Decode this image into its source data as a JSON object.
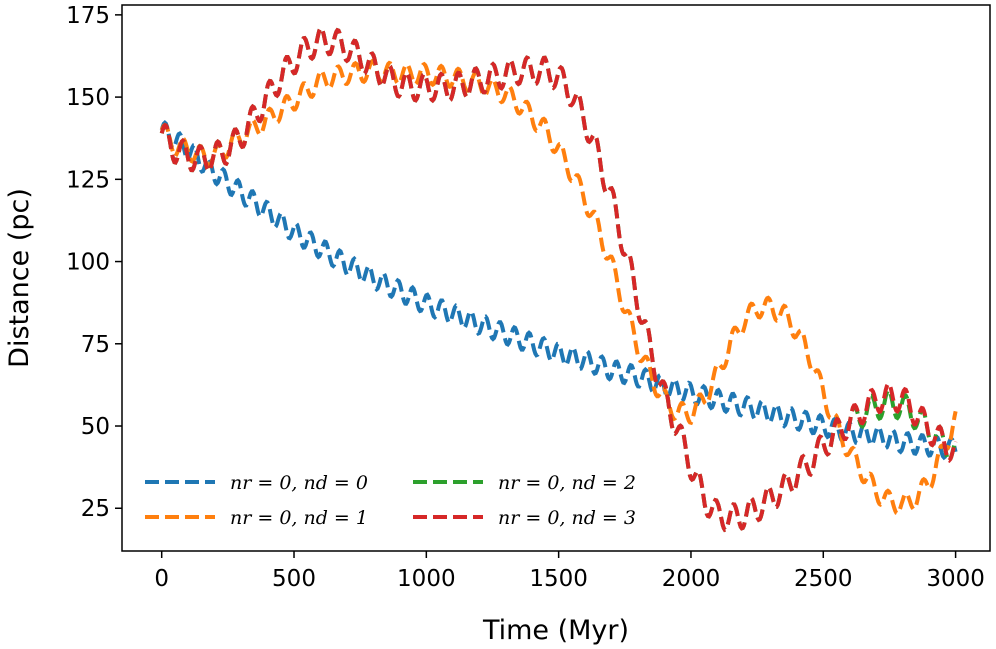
{
  "chart_data": {
    "type": "line",
    "title": "",
    "xlabel": "Time (Myr)",
    "ylabel": "Distance (pc)",
    "xlim": [
      -150,
      3130
    ],
    "ylim": [
      12,
      178
    ],
    "xticks": [
      0,
      500,
      1000,
      1500,
      2000,
      2500,
      3000
    ],
    "yticks": [
      25,
      50,
      75,
      100,
      125,
      150,
      175
    ],
    "grid": false,
    "legend_placement": "bottom-left",
    "series": [
      {
        "name": "n_r = 0, n_d = 0",
        "label": "nr = 0, nd = 0",
        "color": "#1f77b4",
        "oscillation": {
          "amplitude": 3,
          "period": 55
        },
        "x": [
          0,
          100,
          200,
          300,
          400,
          500,
          600,
          700,
          800,
          900,
          1000,
          1100,
          1200,
          1300,
          1400,
          1500,
          1600,
          1700,
          1800,
          1900,
          2000,
          2100,
          2200,
          2300,
          2400,
          2500,
          2600,
          2700,
          2800,
          2900,
          3000
        ],
        "y": [
          140,
          134,
          127,
          121,
          115,
          109,
          104,
          99,
          95,
          91,
          87,
          84,
          81,
          78,
          75,
          72,
          70,
          67,
          65,
          62,
          60,
          58,
          56,
          54,
          52,
          50,
          48,
          47,
          45,
          44,
          43
        ]
      },
      {
        "name": "n_r = 0, n_d = 1",
        "label": "nr = 0, nd = 1",
        "color": "#ff7f0e",
        "oscillation": {
          "amplitude": 3,
          "period": 65
        },
        "x": [
          0,
          50,
          100,
          150,
          200,
          250,
          300,
          400,
          500,
          600,
          700,
          800,
          900,
          1000,
          1100,
          1200,
          1300,
          1350,
          1400,
          1450,
          1500,
          1550,
          1600,
          1650,
          1700,
          1750,
          1800,
          1850,
          1900,
          1950,
          2000,
          2050,
          2100,
          2150,
          2200,
          2250,
          2300,
          2350,
          2400,
          2450,
          2500,
          2550,
          2600,
          2650,
          2700,
          2750,
          2800,
          2850,
          2900,
          2950,
          3000
        ],
        "y": [
          140,
          135,
          134,
          132,
          132,
          135,
          138,
          143,
          149,
          155,
          157,
          158,
          157,
          157,
          156,
          154,
          151,
          148,
          144,
          140,
          134,
          127,
          119,
          110,
          99,
          86,
          74,
          65,
          58,
          54,
          54,
          58,
          66,
          75,
          82,
          86,
          86,
          84,
          79,
          71,
          60,
          50,
          42,
          36,
          30,
          27,
          26,
          28,
          33,
          42,
          52
        ]
      },
      {
        "name": "n_r = 0, n_d = 2",
        "label": "nr = 0, nd = 2",
        "color": "#2ca02c",
        "oscillation": {
          "amplitude": 4,
          "period": 65
        },
        "x": [
          0,
          50,
          100,
          150,
          200,
          250,
          300,
          350,
          400,
          450,
          500,
          550,
          600,
          650,
          700,
          750,
          800,
          850,
          900,
          950,
          1000,
          1050,
          1100,
          1150,
          1200,
          1250,
          1300,
          1350,
          1400,
          1450,
          1500,
          1550,
          1600,
          1650,
          1700,
          1750,
          1800,
          1850,
          1900,
          1950,
          2000,
          2050,
          2100,
          2150,
          2200,
          2250,
          2300,
          2350,
          2400,
          2450,
          2500,
          2550,
          2600,
          2650,
          2700,
          2750,
          2800,
          2850,
          2900,
          2950,
          3000
        ],
        "y": [
          139,
          134,
          132,
          131,
          132,
          134,
          138,
          144,
          150,
          156,
          161,
          165,
          167,
          167,
          165,
          162,
          159,
          156,
          154,
          153,
          153,
          153,
          153,
          154,
          155,
          156,
          157,
          158,
          158,
          158,
          156,
          151,
          143,
          132,
          119,
          104,
          88,
          72,
          59,
          49,
          38,
          28,
          23,
          22,
          23,
          25,
          28,
          31,
          35,
          39,
          44,
          48,
          51,
          54,
          56,
          57,
          56,
          53,
          49,
          45,
          42
        ]
      },
      {
        "name": "n_r = 0, n_d = 3",
        "label": "nr = 0, nd = 3",
        "color": "#d62728",
        "oscillation": {
          "amplitude": 4,
          "period": 65
        },
        "x": [
          0,
          50,
          100,
          150,
          200,
          250,
          300,
          350,
          400,
          450,
          500,
          550,
          600,
          650,
          700,
          750,
          800,
          850,
          900,
          950,
          1000,
          1050,
          1100,
          1150,
          1200,
          1250,
          1300,
          1350,
          1400,
          1450,
          1500,
          1550,
          1600,
          1650,
          1700,
          1750,
          1800,
          1850,
          1900,
          1950,
          2000,
          2050,
          2100,
          2150,
          2200,
          2250,
          2300,
          2350,
          2400,
          2450,
          2500,
          2550,
          2600,
          2650,
          2700,
          2750,
          2800,
          2850,
          2900,
          2950,
          3000
        ],
        "y": [
          139,
          134,
          132,
          131,
          132,
          134,
          138,
          144,
          150,
          156,
          161,
          165,
          167,
          167,
          165,
          162,
          159,
          156,
          154,
          153,
          153,
          153,
          153,
          154,
          155,
          156,
          157,
          158,
          158,
          158,
          156,
          151,
          143,
          132,
          119,
          104,
          88,
          72,
          59,
          49,
          38,
          28,
          23,
          22,
          23,
          25,
          28,
          31,
          35,
          39,
          44,
          48,
          51,
          55,
          58,
          59,
          58,
          54,
          49,
          45,
          42
        ]
      }
    ]
  }
}
